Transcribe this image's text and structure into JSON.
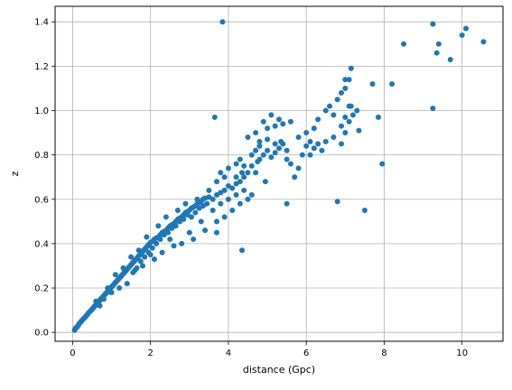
{
  "chart_data": {
    "type": "scatter",
    "title": "",
    "xlabel": "distance (Gpc)",
    "ylabel": "z",
    "xlim": [
      -0.45,
      11.05
    ],
    "ylim": [
      -0.04,
      1.47
    ],
    "xticks": [
      0,
      2,
      4,
      6,
      8,
      10
    ],
    "yticks": [
      0.0,
      0.2,
      0.4,
      0.6,
      0.8,
      1.0,
      1.2,
      1.4
    ],
    "xtick_labels": [
      "0",
      "2",
      "4",
      "6",
      "8",
      "10"
    ],
    "ytick_labels": [
      "0.0",
      "0.2",
      "0.4",
      "0.6",
      "0.8",
      "1.0",
      "1.2",
      "1.4"
    ],
    "grid": true,
    "marker_color": "#1f77b4",
    "series": [
      {
        "points": [
          [
            0.05,
            0.01
          ],
          [
            0.07,
            0.015
          ],
          [
            0.08,
            0.02
          ],
          [
            0.1,
            0.022
          ],
          [
            0.12,
            0.025
          ],
          [
            0.14,
            0.03
          ],
          [
            0.15,
            0.032
          ],
          [
            0.17,
            0.04
          ],
          [
            0.2,
            0.045
          ],
          [
            0.22,
            0.05
          ],
          [
            0.25,
            0.055
          ],
          [
            0.27,
            0.06
          ],
          [
            0.3,
            0.065
          ],
          [
            0.33,
            0.07
          ],
          [
            0.35,
            0.075
          ],
          [
            0.38,
            0.08
          ],
          [
            0.4,
            0.085
          ],
          [
            0.42,
            0.09
          ],
          [
            0.45,
            0.095
          ],
          [
            0.48,
            0.1
          ],
          [
            0.5,
            0.105
          ],
          [
            0.53,
            0.11
          ],
          [
            0.55,
            0.115
          ],
          [
            0.58,
            0.12
          ],
          [
            0.6,
            0.125
          ],
          [
            0.62,
            0.13
          ],
          [
            0.65,
            0.135
          ],
          [
            0.68,
            0.14
          ],
          [
            0.7,
            0.145
          ],
          [
            0.72,
            0.15
          ],
          [
            0.75,
            0.155
          ],
          [
            0.78,
            0.16
          ],
          [
            0.8,
            0.165
          ],
          [
            0.83,
            0.17
          ],
          [
            0.85,
            0.175
          ],
          [
            0.88,
            0.18
          ],
          [
            0.9,
            0.185
          ],
          [
            0.93,
            0.19
          ],
          [
            0.95,
            0.195
          ],
          [
            0.98,
            0.2
          ],
          [
            1.0,
            0.205
          ],
          [
            1.03,
            0.21
          ],
          [
            1.05,
            0.215
          ],
          [
            1.08,
            0.22
          ],
          [
            1.1,
            0.225
          ],
          [
            1.13,
            0.23
          ],
          [
            1.15,
            0.235
          ],
          [
            1.18,
            0.24
          ],
          [
            1.2,
            0.245
          ],
          [
            1.23,
            0.25
          ],
          [
            1.25,
            0.255
          ],
          [
            1.28,
            0.26
          ],
          [
            1.3,
            0.265
          ],
          [
            1.33,
            0.27
          ],
          [
            1.35,
            0.275
          ],
          [
            1.38,
            0.28
          ],
          [
            1.4,
            0.285
          ],
          [
            1.43,
            0.29
          ],
          [
            1.45,
            0.295
          ],
          [
            1.48,
            0.3
          ],
          [
            1.5,
            0.305
          ],
          [
            1.53,
            0.31
          ],
          [
            1.55,
            0.315
          ],
          [
            1.58,
            0.32
          ],
          [
            1.6,
            0.325
          ],
          [
            1.63,
            0.33
          ],
          [
            1.65,
            0.335
          ],
          [
            1.68,
            0.34
          ],
          [
            1.7,
            0.345
          ],
          [
            1.73,
            0.35
          ],
          [
            1.75,
            0.355
          ],
          [
            1.78,
            0.36
          ],
          [
            1.8,
            0.365
          ],
          [
            1.83,
            0.37
          ],
          [
            1.85,
            0.375
          ],
          [
            1.88,
            0.38
          ],
          [
            1.9,
            0.385
          ],
          [
            1.93,
            0.39
          ],
          [
            1.95,
            0.395
          ],
          [
            1.98,
            0.4
          ],
          [
            2.0,
            0.405
          ],
          [
            2.05,
            0.41
          ],
          [
            2.1,
            0.42
          ],
          [
            2.15,
            0.425
          ],
          [
            2.2,
            0.43
          ],
          [
            2.25,
            0.44
          ],
          [
            2.3,
            0.45
          ],
          [
            2.35,
            0.455
          ],
          [
            2.4,
            0.46
          ],
          [
            2.45,
            0.47
          ],
          [
            2.5,
            0.48
          ],
          [
            2.55,
            0.485
          ],
          [
            2.6,
            0.49
          ],
          [
            2.65,
            0.5
          ],
          [
            2.7,
            0.51
          ],
          [
            2.75,
            0.515
          ],
          [
            2.8,
            0.52
          ],
          [
            2.85,
            0.53
          ],
          [
            2.9,
            0.54
          ],
          [
            2.95,
            0.545
          ],
          [
            3.0,
            0.55
          ],
          [
            3.05,
            0.56
          ],
          [
            3.1,
            0.565
          ],
          [
            3.15,
            0.57
          ],
          [
            3.2,
            0.58
          ],
          [
            3.25,
            0.585
          ],
          [
            3.3,
            0.59
          ],
          [
            3.35,
            0.6
          ],
          [
            3.4,
            0.605
          ],
          [
            3.5,
            0.61
          ],
          [
            0.6,
            0.14
          ],
          [
            0.7,
            0.12
          ],
          [
            0.8,
            0.15
          ],
          [
            0.9,
            0.2
          ],
          [
            1.0,
            0.18
          ],
          [
            1.1,
            0.26
          ],
          [
            1.2,
            0.2
          ],
          [
            1.3,
            0.29
          ],
          [
            1.4,
            0.22
          ],
          [
            1.5,
            0.34
          ],
          [
            1.6,
            0.28
          ],
          [
            1.7,
            0.37
          ],
          [
            1.8,
            0.3
          ],
          [
            1.9,
            0.43
          ],
          [
            2.0,
            0.35
          ],
          [
            2.1,
            0.33
          ],
          [
            2.2,
            0.48
          ],
          [
            2.3,
            0.36
          ],
          [
            2.4,
            0.52
          ],
          [
            2.5,
            0.42
          ],
          [
            2.6,
            0.39
          ],
          [
            2.7,
            0.55
          ],
          [
            2.8,
            0.4
          ],
          [
            2.9,
            0.58
          ],
          [
            3.0,
            0.45
          ],
          [
            3.1,
            0.42
          ],
          [
            3.2,
            0.6
          ],
          [
            3.3,
            0.5
          ],
          [
            3.4,
            0.46
          ],
          [
            3.5,
            0.64
          ],
          [
            1.55,
            0.27
          ],
          [
            1.65,
            0.29
          ],
          [
            1.75,
            0.32
          ],
          [
            1.85,
            0.34
          ],
          [
            1.95,
            0.36
          ],
          [
            2.05,
            0.38
          ],
          [
            2.15,
            0.4
          ],
          [
            2.25,
            0.42
          ],
          [
            2.35,
            0.44
          ],
          [
            2.45,
            0.45
          ],
          [
            2.55,
            0.47
          ],
          [
            2.65,
            0.48
          ],
          [
            2.75,
            0.5
          ],
          [
            2.85,
            0.51
          ],
          [
            2.95,
            0.53
          ],
          [
            3.05,
            0.52
          ],
          [
            3.15,
            0.54
          ],
          [
            3.25,
            0.56
          ],
          [
            3.35,
            0.57
          ],
          [
            3.45,
            0.58
          ],
          [
            3.6,
            0.6
          ],
          [
            3.7,
            0.62
          ],
          [
            3.8,
            0.63
          ],
          [
            3.9,
            0.64
          ],
          [
            4.0,
            0.66
          ],
          [
            4.1,
            0.65
          ],
          [
            4.2,
            0.67
          ],
          [
            4.3,
            0.68
          ],
          [
            4.4,
            0.7
          ],
          [
            4.5,
            0.72
          ],
          [
            3.6,
            0.55
          ],
          [
            3.7,
            0.5
          ],
          [
            3.8,
            0.58
          ],
          [
            3.9,
            0.52
          ],
          [
            4.0,
            0.6
          ],
          [
            4.1,
            0.55
          ],
          [
            4.2,
            0.62
          ],
          [
            4.3,
            0.58
          ],
          [
            4.4,
            0.64
          ],
          [
            4.5,
            0.6
          ],
          [
            3.7,
            0.68
          ],
          [
            3.8,
            0.72
          ],
          [
            3.9,
            0.7
          ],
          [
            4.0,
            0.74
          ],
          [
            4.2,
            0.76
          ],
          [
            4.3,
            0.78
          ],
          [
            4.4,
            0.75
          ],
          [
            4.6,
            0.8
          ],
          [
            4.7,
            0.82
          ],
          [
            4.8,
            0.84
          ],
          [
            4.6,
            0.75
          ],
          [
            4.7,
            0.72
          ],
          [
            4.8,
            0.78
          ],
          [
            4.9,
            0.8
          ],
          [
            5.0,
            0.82
          ],
          [
            5.1,
            0.79
          ],
          [
            5.2,
            0.81
          ],
          [
            5.3,
            0.83
          ],
          [
            5.4,
            0.85
          ],
          [
            5.5,
            0.82
          ],
          [
            4.5,
            0.88
          ],
          [
            4.7,
            0.9
          ],
          [
            4.9,
            0.95
          ],
          [
            5.0,
            0.92
          ],
          [
            5.1,
            0.98
          ],
          [
            5.2,
            0.93
          ],
          [
            5.3,
            0.96
          ],
          [
            5.4,
            0.94
          ],
          [
            4.8,
            0.86
          ],
          [
            5.0,
            0.87
          ],
          [
            5.5,
            0.78
          ],
          [
            5.6,
            0.76
          ],
          [
            5.7,
            0.7
          ],
          [
            5.8,
            0.74
          ],
          [
            5.9,
            0.8
          ],
          [
            6.0,
            0.84
          ],
          [
            6.1,
            0.86
          ],
          [
            6.2,
            0.83
          ],
          [
            6.3,
            0.85
          ],
          [
            6.4,
            0.82
          ],
          [
            6.0,
            0.9
          ],
          [
            6.2,
            0.92
          ],
          [
            6.3,
            0.96
          ],
          [
            6.5,
            1.0
          ],
          [
            6.6,
            1.02
          ],
          [
            6.7,
            0.98
          ],
          [
            6.8,
            1.05
          ],
          [
            6.9,
            1.08
          ],
          [
            7.0,
            1.1
          ],
          [
            7.1,
            1.14
          ],
          [
            6.5,
            0.86
          ],
          [
            6.7,
            0.88
          ],
          [
            6.9,
            0.85
          ],
          [
            7.0,
            0.9
          ],
          [
            7.1,
            0.95
          ],
          [
            7.2,
            0.98
          ],
          [
            7.3,
            1.0
          ],
          [
            7.1,
            1.02
          ],
          [
            7.0,
            0.97
          ],
          [
            6.9,
            0.93
          ],
          [
            5.6,
            0.95
          ],
          [
            5.8,
            0.88
          ],
          [
            6.1,
            0.8
          ],
          [
            5.2,
            0.85
          ],
          [
            4.95,
            0.68
          ],
          [
            4.6,
            0.62
          ],
          [
            5.35,
            0.86
          ],
          [
            4.2,
            0.7
          ],
          [
            4.35,
            0.72
          ],
          [
            4.75,
            0.77
          ],
          [
            3.65,
            0.97
          ],
          [
            3.85,
            1.4
          ],
          [
            4.35,
            0.37
          ],
          [
            3.7,
            0.45
          ],
          [
            5.5,
            0.58
          ],
          [
            6.8,
            0.59
          ],
          [
            7.5,
            0.55
          ],
          [
            7.95,
            0.76
          ],
          [
            7.7,
            1.12
          ],
          [
            7.85,
            0.97
          ],
          [
            7.15,
            1.19
          ],
          [
            7.0,
            1.14
          ],
          [
            7.15,
            1.02
          ],
          [
            8.2,
            1.12
          ],
          [
            8.5,
            1.3
          ],
          [
            9.25,
            1.39
          ],
          [
            9.35,
            1.26
          ],
          [
            9.4,
            1.3
          ],
          [
            9.7,
            1.23
          ],
          [
            10.0,
            1.34
          ],
          [
            10.1,
            1.37
          ],
          [
            10.55,
            1.31
          ],
          [
            9.25,
            1.01
          ],
          [
            7.35,
            0.91
          ]
        ]
      }
    ]
  }
}
